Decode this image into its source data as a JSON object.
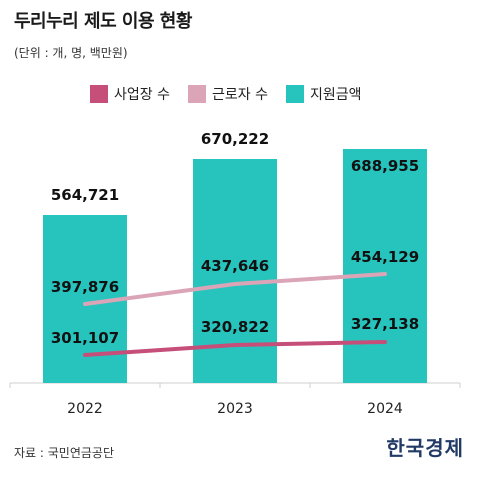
{
  "header": {
    "title": "두리누리 제도 이용 현황",
    "unit": "(단위 : 개, 명, 백만원)"
  },
  "legend": {
    "items": [
      {
        "label": "사업장 수",
        "color": "#c64f7a"
      },
      {
        "label": "근로자 수",
        "color": "#dba5b7"
      },
      {
        "label": "지원금액",
        "color": "#27c4be"
      }
    ]
  },
  "footer": {
    "source": "자료 : 국민연금공단",
    "logo": "한국경제"
  },
  "chart_data": {
    "type": "bar",
    "categories": [
      "2022",
      "2023",
      "2024"
    ],
    "series": [
      {
        "name": "지원금액",
        "type": "bar",
        "values": [
          564721,
          670222,
          688955
        ],
        "labels": [
          "564,721",
          "670,222",
          "688,955"
        ],
        "color": "#27c4be"
      },
      {
        "name": "근로자 수",
        "type": "line",
        "values": [
          397876,
          437646,
          454129
        ],
        "labels": [
          "397,876",
          "437,646",
          "454,129"
        ],
        "color": "#dba5b7"
      },
      {
        "name": "사업장 수",
        "type": "line",
        "values": [
          301107,
          320822,
          327138
        ],
        "labels": [
          "301,107",
          "320,822",
          "327,138"
        ],
        "color": "#c64f7a"
      }
    ],
    "grid": false,
    "legend_position": "top"
  }
}
